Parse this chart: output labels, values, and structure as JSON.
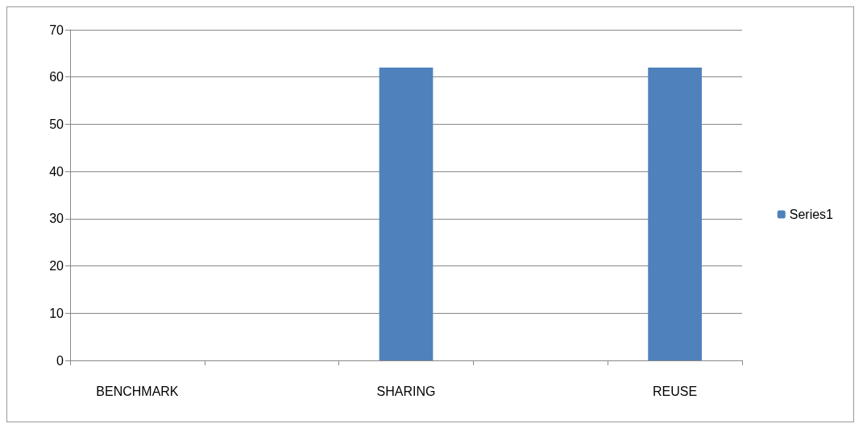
{
  "chart_data": {
    "type": "bar",
    "categories": [
      "BENCHMARK",
      null,
      "SHARING",
      null,
      "REUSE"
    ],
    "series": [
      {
        "name": "Series1",
        "color": "#4f81bd",
        "values": [
          null,
          null,
          62,
          null,
          62
        ]
      }
    ],
    "ylim": [
      0,
      70
    ],
    "yticks": [
      0,
      10,
      20,
      30,
      40,
      50,
      60,
      70
    ],
    "grid": "y",
    "legend": "right"
  }
}
